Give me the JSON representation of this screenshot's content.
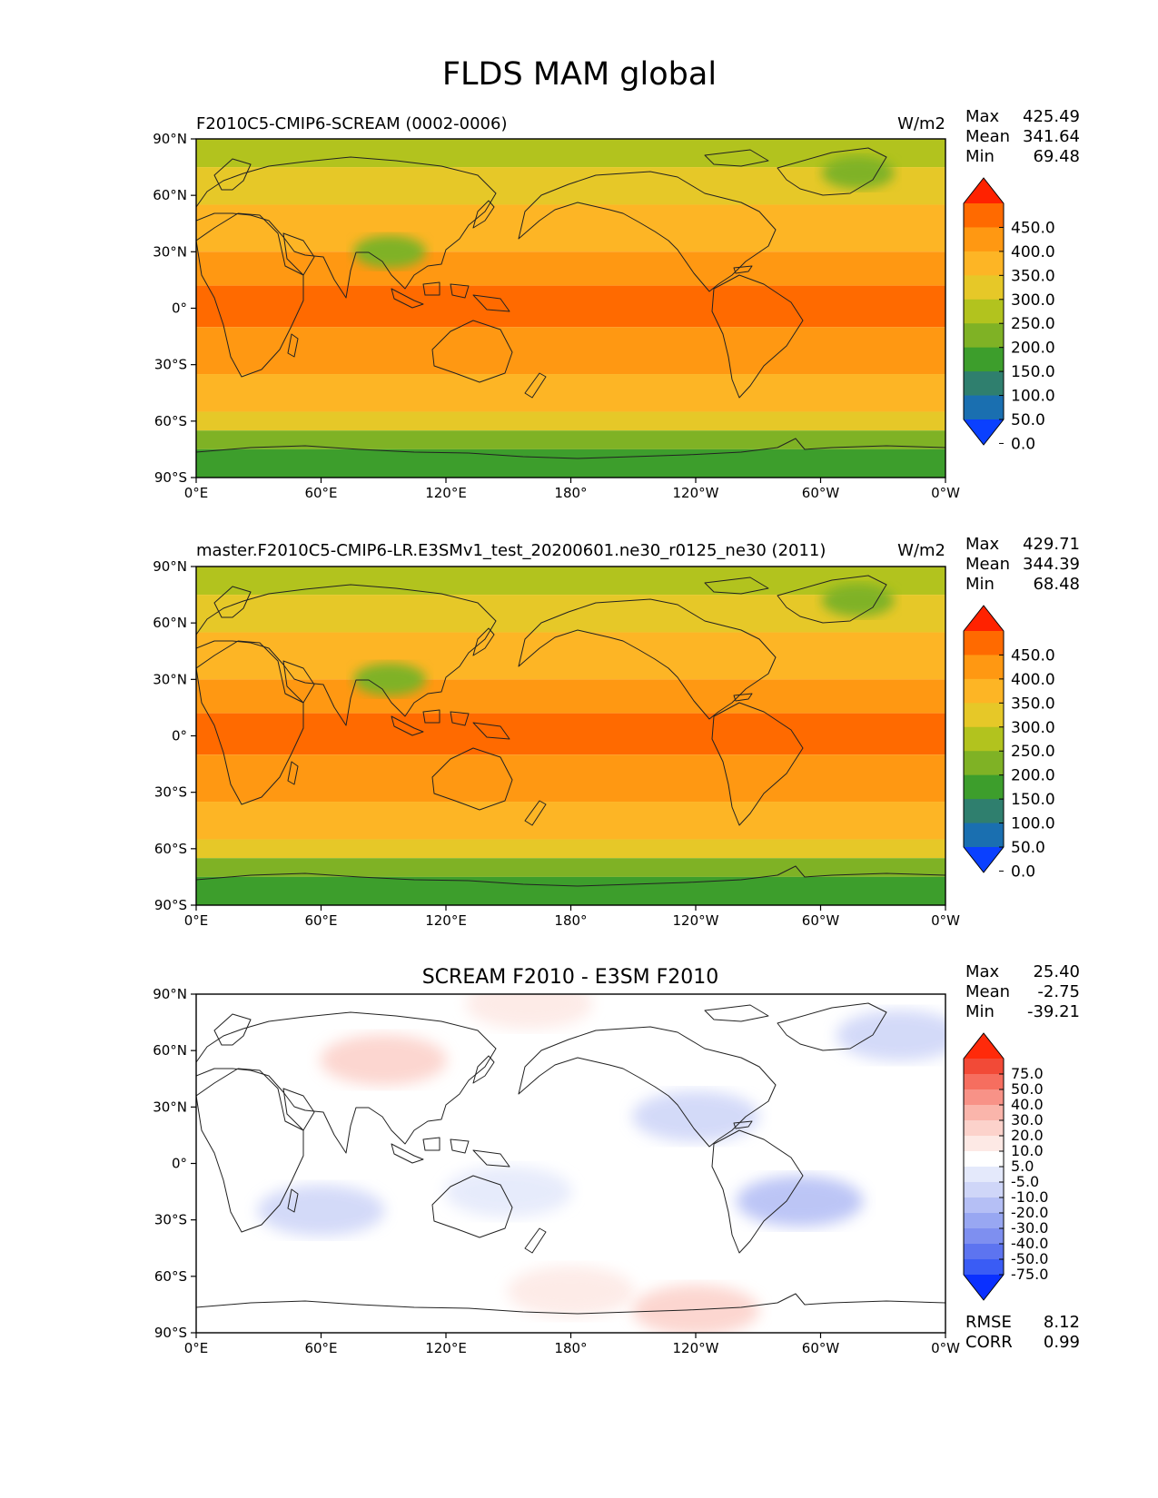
{
  "figure_title": "FLDS MAM global",
  "panels": [
    {
      "left_title": "F2010C5-CMIP6-SCREAM (0002-0006)",
      "units": "W/m2",
      "stats": {
        "max_label": "Max",
        "max": "425.49",
        "mean_label": "Mean",
        "mean": "341.64",
        "min_label": "Min",
        "min": "69.48"
      },
      "colorbar_levels": [
        "450.0",
        "400.0",
        "350.0",
        "300.0",
        "250.0",
        "200.0",
        "150.0",
        "100.0",
        "50.0",
        "0.0"
      ]
    },
    {
      "left_title": "master.F2010C5-CMIP6-LR.E3SMv1_test_20200601.ne30_r0125_ne30 (2011)",
      "units": "W/m2",
      "stats": {
        "max_label": "Max",
        "max": "429.71",
        "mean_label": "Mean",
        "mean": "344.39",
        "min_label": "Min",
        "min": "68.48"
      },
      "colorbar_levels": [
        "450.0",
        "400.0",
        "350.0",
        "300.0",
        "250.0",
        "200.0",
        "150.0",
        "100.0",
        "50.0",
        "0.0"
      ]
    },
    {
      "center_title": "SCREAM F2010 - E3SM F2010",
      "stats": {
        "max_label": "Max",
        "max": "25.40",
        "mean_label": "Mean",
        "mean": "-2.75",
        "min_label": "Min",
        "min": "-39.21"
      },
      "colorbar_levels": [
        "75.0",
        "50.0",
        "40.0",
        "30.0",
        "20.0",
        "10.0",
        "5.0",
        "-5.0",
        "-10.0",
        "-20.0",
        "-30.0",
        "-40.0",
        "-50.0",
        "-75.0"
      ],
      "extra_stats": {
        "rmse_label": "RMSE",
        "rmse": "8.12",
        "corr_label": "CORR",
        "corr": "0.99"
      }
    }
  ],
  "axes": {
    "lat_ticks": [
      "90°N",
      "60°N",
      "30°N",
      "0°",
      "30°S",
      "60°S",
      "90°S"
    ],
    "lon_ticks": [
      "0°E",
      "60°E",
      "120°E",
      "180°",
      "120°W",
      "60°W",
      "0°W"
    ]
  },
  "colors": {
    "field_colorbar": [
      "#ff2200",
      "#ff6a00",
      "#ff9812",
      "#fdb525",
      "#e6c828",
      "#b2c31e",
      "#7fb225",
      "#3d9e2c",
      "#2f7f6e",
      "#1a6fb0",
      "#0a40ff"
    ],
    "diff_colorbar": [
      "#ff2a0a",
      "#f24a37",
      "#f66e5f",
      "#f89287",
      "#fab5ab",
      "#fcd2cb",
      "#fde9e5",
      "#ffffff",
      "#e4e9fb",
      "#cfd6f8",
      "#b5bff5",
      "#98a7f2",
      "#7e8ff0",
      "#5d74f0",
      "#3a5cf5",
      "#0a30ff"
    ]
  },
  "chart_data": [
    {
      "type": "heatmap",
      "title": "F2010C5-CMIP6-SCREAM (0002-0006)",
      "units": "W/m2",
      "x_ticks": [
        "0°E",
        "60°E",
        "120°E",
        "180°",
        "120°W",
        "60°W",
        "0°W"
      ],
      "y_ticks": [
        "90°N",
        "60°N",
        "30°N",
        "0°",
        "30°S",
        "60°S",
        "90°S"
      ],
      "zonal_bands": [
        {
          "lat_from": 90,
          "lat_to": 75,
          "value": 225
        },
        {
          "lat_from": 75,
          "lat_to": 55,
          "value": 275
        },
        {
          "lat_from": 55,
          "lat_to": 30,
          "value": 325
        },
        {
          "lat_from": 30,
          "lat_to": 12,
          "value": 375
        },
        {
          "lat_from": 12,
          "lat_to": -10,
          "value": 410
        },
        {
          "lat_from": -10,
          "lat_to": -35,
          "value": 375
        },
        {
          "lat_from": -35,
          "lat_to": -55,
          "value": 325
        },
        {
          "lat_from": -55,
          "lat_to": -65,
          "value": 275
        },
        {
          "lat_from": -65,
          "lat_to": -75,
          "value": 175
        },
        {
          "lat_from": -75,
          "lat_to": -90,
          "value": 125
        }
      ],
      "features": [
        {
          "lon": 93,
          "lat": 30,
          "value": 175
        },
        {
          "lon": 318,
          "lat": 72,
          "value": 175
        }
      ],
      "stats": {
        "max": 425.49,
        "mean": 341.64,
        "min": 69.48
      },
      "colorbar_levels": [
        0,
        50,
        100,
        150,
        200,
        250,
        300,
        350,
        400,
        450
      ]
    },
    {
      "type": "heatmap",
      "title": "master.F2010C5-CMIP6-LR.E3SMv1_test_20200601.ne30_r0125_ne30 (2011)",
      "units": "W/m2",
      "x_ticks": [
        "0°E",
        "60°E",
        "120°E",
        "180°",
        "120°W",
        "60°W",
        "0°W"
      ],
      "y_ticks": [
        "90°N",
        "60°N",
        "30°N",
        "0°",
        "30°S",
        "60°S",
        "90°S"
      ],
      "zonal_bands": [
        {
          "lat_from": 90,
          "lat_to": 75,
          "value": 225
        },
        {
          "lat_from": 75,
          "lat_to": 55,
          "value": 275
        },
        {
          "lat_from": 55,
          "lat_to": 30,
          "value": 325
        },
        {
          "lat_from": 30,
          "lat_to": 12,
          "value": 375
        },
        {
          "lat_from": 12,
          "lat_to": -10,
          "value": 410
        },
        {
          "lat_from": -10,
          "lat_to": -35,
          "value": 375
        },
        {
          "lat_from": -35,
          "lat_to": -55,
          "value": 325
        },
        {
          "lat_from": -55,
          "lat_to": -65,
          "value": 275
        },
        {
          "lat_from": -65,
          "lat_to": -75,
          "value": 175
        },
        {
          "lat_from": -75,
          "lat_to": -90,
          "value": 125
        }
      ],
      "features": [
        {
          "lon": 93,
          "lat": 30,
          "value": 175
        },
        {
          "lon": 318,
          "lat": 72,
          "value": 175
        }
      ],
      "stats": {
        "max": 429.71,
        "mean": 344.39,
        "min": 68.48
      },
      "colorbar_levels": [
        0,
        50,
        100,
        150,
        200,
        250,
        300,
        350,
        400,
        450
      ]
    },
    {
      "type": "heatmap",
      "title": "SCREAM F2010 - E3SM F2010",
      "x_ticks": [
        "0°E",
        "60°E",
        "120°E",
        "180°",
        "120°W",
        "60°W",
        "0°W"
      ],
      "y_ticks": [
        "90°N",
        "60°N",
        "30°N",
        "0°",
        "30°S",
        "60°S",
        "90°S"
      ],
      "features": [
        {
          "lon": 90,
          "lat": 55,
          "value": 12
        },
        {
          "lon": 160,
          "lat": 85,
          "value": 7
        },
        {
          "lon": 338,
          "lat": 68,
          "value": -15
        },
        {
          "lon": 60,
          "lat": -25,
          "value": -12
        },
        {
          "lon": 150,
          "lat": -15,
          "value": -10
        },
        {
          "lon": 240,
          "lat": 25,
          "value": -15
        },
        {
          "lon": 290,
          "lat": -20,
          "value": -25
        },
        {
          "lon": 180,
          "lat": -68,
          "value": 8
        },
        {
          "lon": 240,
          "lat": -78,
          "value": 10
        }
      ],
      "stats": {
        "max": 25.4,
        "mean": -2.75,
        "min": -39.21
      },
      "colorbar_levels": [
        -75,
        -50,
        -40,
        -30,
        -20,
        -10,
        -5,
        5,
        10,
        20,
        30,
        40,
        50,
        75
      ],
      "rmse": 8.12,
      "corr": 0.99
    }
  ]
}
